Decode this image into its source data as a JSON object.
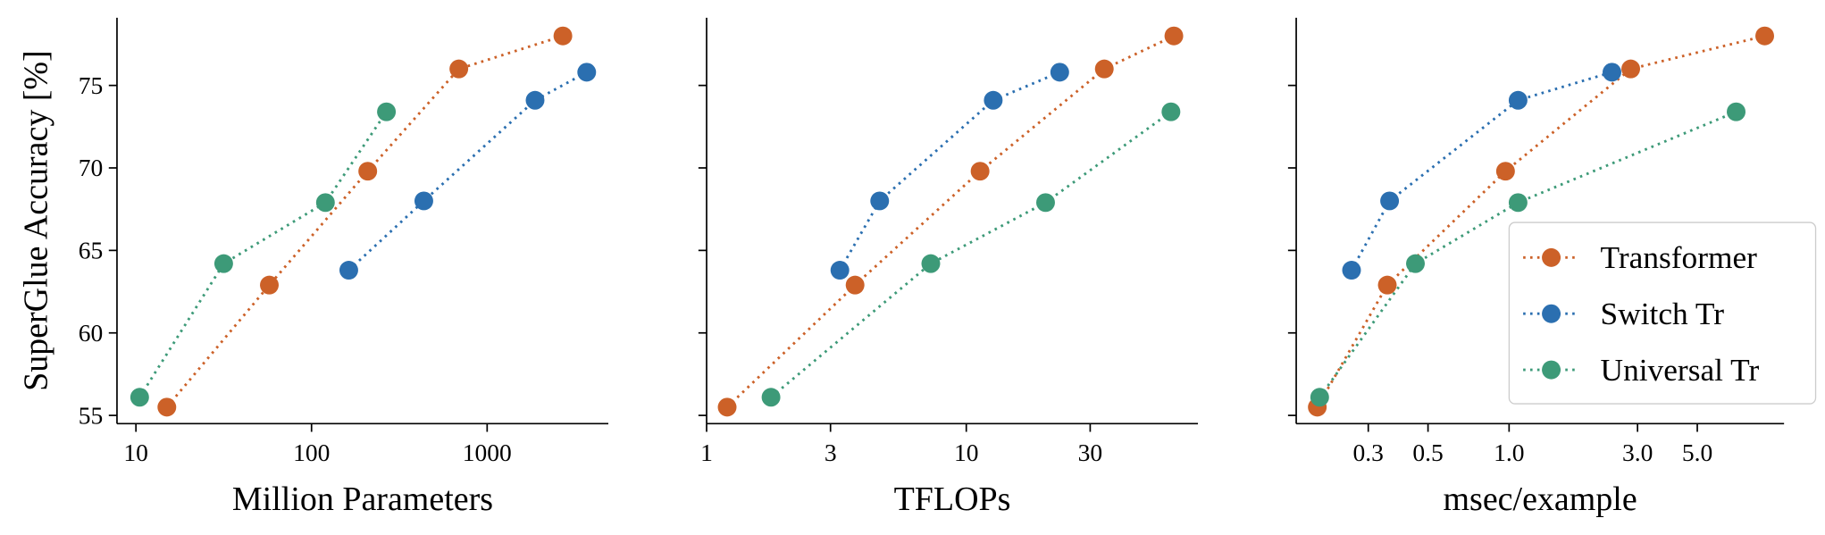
{
  "chart_data": [
    {
      "type": "line",
      "xlabel": "Million Parameters",
      "ylabel": "SuperGlue Accuracy [%]",
      "xlog": true,
      "xlim": [
        7.8,
        4900
      ],
      "ylim": [
        54.5,
        79.1
      ],
      "xticks": [
        10,
        100,
        1000
      ],
      "yticks": [
        55,
        60,
        65,
        70,
        75
      ],
      "series": [
        {
          "name": "Transformer",
          "color": "#cc6128",
          "x": [
            15,
            57.5,
            209,
            690,
            2700
          ],
          "values": [
            55.5,
            62.9,
            69.8,
            76,
            78
          ]
        },
        {
          "name": "Switch Tr",
          "color": "#2b6fb0",
          "x": [
            163,
            436,
            1875,
            3690
          ],
          "values": [
            63.8,
            68,
            74.1,
            75.8
          ]
        },
        {
          "name": "Universal Tr",
          "color": "#3d9a78",
          "x": [
            10.5,
            31.6,
            120,
            267
          ],
          "values": [
            56.1,
            64.2,
            67.9,
            73.4
          ]
        }
      ]
    },
    {
      "type": "line",
      "xlabel": "TFLOPs",
      "xlog": true,
      "sharey": true,
      "xlim": [
        1,
        78
      ],
      "ylim": [
        54.5,
        79.1
      ],
      "xticks": [
        1,
        3,
        10,
        30
      ],
      "yticks": [
        55,
        60,
        65,
        70,
        75
      ],
      "series": [
        {
          "name": "Transformer",
          "color": "#cc6128",
          "x": [
            1.2,
            3.73,
            11.3,
            34,
            63
          ],
          "values": [
            55.5,
            62.9,
            69.8,
            76,
            78
          ]
        },
        {
          "name": "Switch Tr",
          "color": "#2b6fb0",
          "x": [
            3.26,
            4.64,
            12.7,
            22.9
          ],
          "values": [
            63.8,
            68,
            74.1,
            75.8
          ]
        },
        {
          "name": "Universal Tr",
          "color": "#3d9a78",
          "x": [
            1.77,
            7.3,
            20.2,
            61.4
          ],
          "values": [
            56.1,
            64.2,
            67.9,
            73.4
          ]
        }
      ]
    },
    {
      "type": "line",
      "xlabel": "msec/example",
      "xlog": true,
      "sharey": true,
      "legend": "lower right",
      "xlim": [
        0.162,
        10.5
      ],
      "ylim": [
        54.5,
        79.1
      ],
      "xticks": [
        0.3,
        0.5,
        {
          "value": 1,
          "label": "1.0"
        },
        {
          "value": 3,
          "label": "3.0"
        },
        {
          "value": 5,
          "label": "5.0"
        }
      ],
      "yticks": [
        55,
        60,
        65,
        70,
        75
      ],
      "series": [
        {
          "name": "Transformer",
          "color": "#cc6128",
          "x": [
            0.194,
            0.353,
            0.97,
            2.83,
            8.9
          ],
          "values": [
            55.5,
            62.9,
            69.8,
            76,
            78
          ]
        },
        {
          "name": "Switch Tr",
          "color": "#2b6fb0",
          "x": [
            0.26,
            0.36,
            1.08,
            2.41
          ],
          "values": [
            63.8,
            68,
            74.1,
            75.8
          ]
        },
        {
          "name": "Universal Tr",
          "color": "#3d9a78",
          "x": [
            0.198,
            0.449,
            1.08,
            6.97
          ],
          "values": [
            56.1,
            64.2,
            67.9,
            73.4
          ]
        }
      ]
    }
  ]
}
